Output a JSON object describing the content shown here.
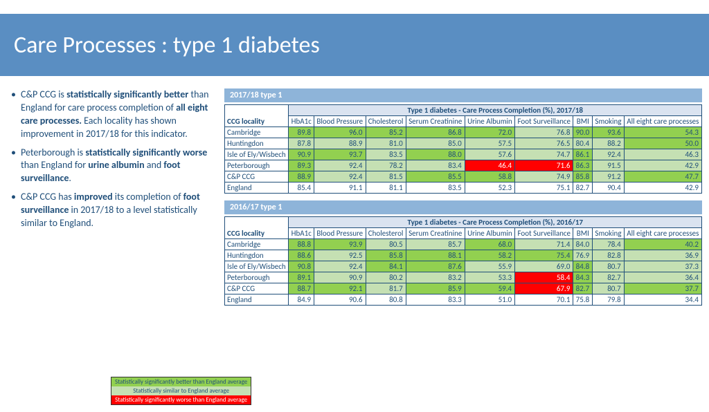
{
  "title": "Care Processes : type 1 diabetes",
  "bullets": [
    "C&P CCG is <b>statistically significantly better</b> than England for care process completion of <b>all eight care processes.</b> Each locality has shown improvement in 2017/18 for this indicator.",
    "Peterborough is <b>statistically significantly worse</b> than England for <b>urine albumin</b> and <b>foot surveillance</b>.",
    "C&P CCG has <b>improved</b> its completion of <b>foot surveillance</b> in 2017/18 to a level statistically similar to England."
  ],
  "colors": {
    "better": "#92d050",
    "similar": "#c5e0b3",
    "worse": "#ff0000",
    "worse_text": "#ffffff"
  },
  "legend": [
    {
      "text": "Statistically significantly better than England average",
      "bg": "#92d050"
    },
    {
      "text": "Statistically similar to England average",
      "bg": "#c5e0b3"
    },
    {
      "text": "Statistically significantly worse than England average",
      "bg": "#ff0000",
      "color": "#ffffff"
    }
  ],
  "columns": [
    "HbA1c",
    "Blood Pressure",
    "Cholesterol",
    "Serum Creatinine",
    "Urine Albumin",
    "Foot Surveillance",
    "BMI",
    "Smoking",
    "All eight care processes"
  ],
  "loc_header": "CCG locality",
  "tables": [
    {
      "tab": "2017/18 type 1",
      "spanner": "Type 1 diabetes - Care Process Completion (%), 2017/18",
      "rows": [
        {
          "loc": "Cambridge",
          "v": [
            89.8,
            96.0,
            85.2,
            86.8,
            72.0,
            76.8,
            90.0,
            93.6,
            54.3
          ],
          "s": [
            "b",
            "b",
            "b",
            "b",
            "b",
            "s",
            "b",
            "b",
            "b"
          ]
        },
        {
          "loc": "Huntingdon",
          "v": [
            87.8,
            88.9,
            81.0,
            85.0,
            57.5,
            76.5,
            80.4,
            88.2,
            50.0
          ],
          "s": [
            "s",
            "s",
            "s",
            "s",
            "s",
            "s",
            "s",
            "s",
            "b"
          ]
        },
        {
          "loc": "Isle of Ely/Wisbech",
          "v": [
            90.9,
            93.7,
            83.5,
            88.0,
            57.6,
            74.7,
            86.1,
            92.4,
            46.3
          ],
          "s": [
            "b",
            "b",
            "s",
            "b",
            "s",
            "s",
            "b",
            "s",
            "s"
          ]
        },
        {
          "loc": "Peterborough",
          "v": [
            89.3,
            92.4,
            78.2,
            83.4,
            46.4,
            71.6,
            86.3,
            91.5,
            42.9
          ],
          "s": [
            "b",
            "s",
            "s",
            "s",
            "w",
            "w",
            "b",
            "s",
            "s"
          ]
        },
        {
          "loc": "C&P CCG",
          "v": [
            88.9,
            92.4,
            81.5,
            85.5,
            58.8,
            74.9,
            85.8,
            91.2,
            47.7
          ],
          "s": [
            "b",
            "s",
            "s",
            "b",
            "b",
            "s",
            "b",
            "s",
            "b"
          ]
        },
        {
          "loc": "England",
          "v": [
            85.4,
            91.1,
            81.1,
            83.5,
            52.3,
            75.1,
            82.7,
            90.4,
            42.9
          ],
          "s": [
            "",
            "",
            "",
            "",
            "",
            "",
            "",
            "",
            ""
          ]
        }
      ]
    },
    {
      "tab": "2016/17 type 1",
      "spanner": "Type 1 diabetes - Care Process Completion (%), 2016/17",
      "rows": [
        {
          "loc": "Cambridge",
          "v": [
            88.8,
            93.9,
            80.5,
            85.7,
            68.0,
            71.4,
            84.0,
            78.4,
            40.2
          ],
          "s": [
            "b",
            "b",
            "s",
            "s",
            "b",
            "s",
            "s",
            "s",
            "b"
          ]
        },
        {
          "loc": "Huntingdon",
          "v": [
            88.6,
            92.5,
            85.8,
            88.1,
            58.2,
            75.4,
            76.9,
            82.8,
            36.9
          ],
          "s": [
            "b",
            "s",
            "b",
            "b",
            "b",
            "b",
            "s",
            "s",
            "s"
          ]
        },
        {
          "loc": "Isle of Ely/Wisbech",
          "v": [
            90.8,
            92.4,
            84.1,
            87.6,
            55.9,
            69.0,
            84.8,
            80.7,
            37.3
          ],
          "s": [
            "b",
            "s",
            "b",
            "b",
            "s",
            "s",
            "b",
            "s",
            "s"
          ]
        },
        {
          "loc": "Peterborough",
          "v": [
            89.1,
            90.9,
            80.2,
            83.2,
            53.3,
            58.4,
            84.3,
            82.7,
            36.4
          ],
          "s": [
            "b",
            "s",
            "s",
            "s",
            "s",
            "w",
            "b",
            "s",
            "s"
          ]
        },
        {
          "loc": "C&P CCG",
          "v": [
            88.7,
            92.1,
            81.7,
            85.9,
            59.4,
            67.9,
            82.7,
            80.7,
            37.7
          ],
          "s": [
            "b",
            "b",
            "s",
            "b",
            "b",
            "w",
            "b",
            "s",
            "b"
          ]
        },
        {
          "loc": "England",
          "v": [
            84.9,
            90.6,
            80.8,
            83.3,
            51.0,
            70.1,
            75.8,
            79.8,
            34.4
          ],
          "s": [
            "",
            "",
            "",
            "",
            "",
            "",
            "",
            "",
            ""
          ]
        }
      ]
    }
  ]
}
